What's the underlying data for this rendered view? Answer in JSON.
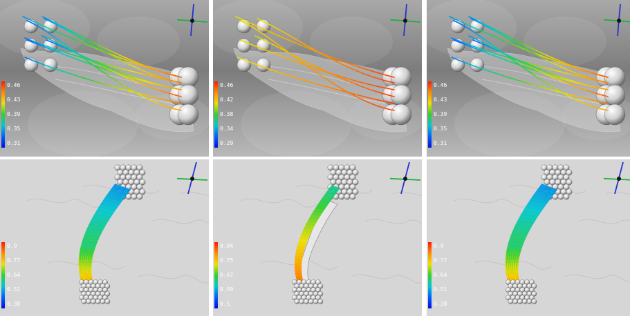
{
  "colors": {
    "background_top": "#8a8a8a",
    "background_bottom": "#dcdcdc",
    "tissue": "#d0d0d0",
    "axis_x": "#1faf3a",
    "axis_y": "#2233cc",
    "colormap": [
      "#ff1a00",
      "#ff8c00",
      "#f0e000",
      "#30d030",
      "#00c8d0",
      "#0060ff",
      "#0010e0"
    ]
  },
  "panels": [
    {
      "id": "top-left",
      "view": "side",
      "fiber_style": "mixed",
      "scale_ticks": [
        "0.46",
        "0.43",
        "0.39",
        "0.35",
        "0.31"
      ]
    },
    {
      "id": "top-middle",
      "view": "side",
      "fiber_style": "warm",
      "scale_ticks": [
        "0.46",
        "0.42",
        "0.38",
        "0.34",
        "0.29"
      ]
    },
    {
      "id": "top-right",
      "view": "side",
      "fiber_style": "mixed",
      "scale_ticks": [
        "0.46",
        "0.43",
        "0.39",
        "0.35",
        "0.31"
      ]
    },
    {
      "id": "bottom-left",
      "view": "bundle",
      "fiber_style": "mixed",
      "scale_ticks": [
        "0.9",
        "0.77",
        "0.64",
        "0.51",
        "0.38"
      ]
    },
    {
      "id": "bottom-middle",
      "view": "bundle",
      "fiber_style": "sparse",
      "scale_ticks": [
        "0.84",
        "0.75",
        "0.67",
        "0.59",
        "0.5"
      ]
    },
    {
      "id": "bottom-right",
      "view": "bundle",
      "fiber_style": "mixed",
      "scale_ticks": [
        "0.9",
        "0.77",
        "0.64",
        "0.51",
        "0.38"
      ]
    }
  ]
}
